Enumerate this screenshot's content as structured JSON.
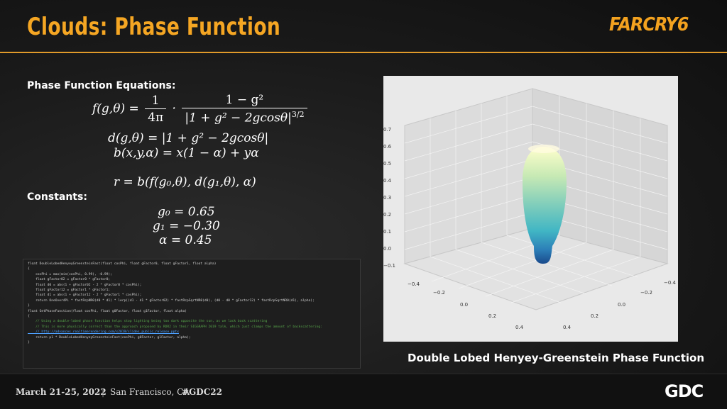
{
  "slide": {
    "title": "Clouds: Phase Function",
    "logo_text": "FARCRY6",
    "phase_heading": "Phase Function Equations:",
    "constants_heading": "Constants:",
    "caption": "Double Lobed Henyey-Greenstein Phase Function"
  },
  "equations": {
    "f_lhs": "f(g,θ) = ",
    "f_frac1_num": "1",
    "f_frac1_den": "4π",
    "f_dot": "·",
    "f_frac2_num": "1 − g²",
    "f_frac2_den_base": "|1 + g² − 2gcosθ|",
    "f_frac2_den_exp": "3/2",
    "d_eq": "d(g,θ) = |1 + g² − 2gcosθ|",
    "b_eq": "b(x,y,α) = x(1 − α) + yα",
    "r_eq": "r = b(f(g₀,θ), d(g₁,θ), α)"
  },
  "constants": {
    "g0": "g₀ = 0.65",
    "g1": "g₁ = −0.30",
    "alpha": "α = 0.45"
  },
  "code_lines": [
    "float DoubleLobedHenyeyGreensteinFast(float cosPhi, float gFactor0, float gFactor1, float alpha)",
    "{",
    "    cosPhi = max(min(cosPhi, 0.99), -0.99);",
    "",
    "    float gFactor02 = gFactor0 * gFactor0;",
    "    float d0 = abs(1 + gFactor02 - 2 * gFactor0 * cosPhi);",
    "",
    "    float gFactor12 = gFactor1 * gFactor1;",
    "    float d1 = abs(1 + gFactor12 - 2 * gFactor1 * cosPhi);",
    "",
    "    return OneOver4Pi * fastRcpNR0(d0 * d1) * lerp((d1 - d1 * gFactor02) * fastRcpSqrtNR0(d0), (d0 - d0 * gFactor12) * fastRcpSqrtNR0(d1), alpha);",
    "}",
    "",
    "float GetPhaseFunction(float cosPhi, float g0Factor, float g1Factor, float alpha)",
    "{",
    "    // Using a double-lobed phase function helps stop lighting being too dark opposite the sun, as we lack back scattering",
    "    // This is more physically correct than the approach proposed by RDR2 in their SIGGRAPH 2019 talk, which just clamps the amount of backscattering:",
    "    // http://advances.realtimerendering.com/s2019/slides_public_release.pptx",
    "    return p1 * DoubleLobedHenyeyGreensteinFast(cosPhi, g0Factor, g1Factor, alpha);",
    "}"
  ],
  "plot": {
    "z_ticks": [
      "0.7",
      "0.6",
      "0.5",
      "0.4",
      "0.3",
      "0.2",
      "0.1",
      "0.0",
      "−0.1"
    ],
    "x_ticks": [
      "−0.4",
      "−0.2",
      "0.0",
      "0.2",
      "0.4"
    ],
    "y_ticks": [
      "−0.4",
      "−0.2",
      "0.0",
      "0.2",
      "0.4"
    ],
    "lobe_colors": [
      "#1a4a8c",
      "#2c7fb8",
      "#41b6c4",
      "#7fcdbb",
      "#c7e9b4",
      "#ffffcc"
    ]
  },
  "footer": {
    "dates": "March 21-25, 2022",
    "sep": "|",
    "location": "San Francisco, CA",
    "hashtag": "#GDC22",
    "gdc_logo": "GDC"
  }
}
